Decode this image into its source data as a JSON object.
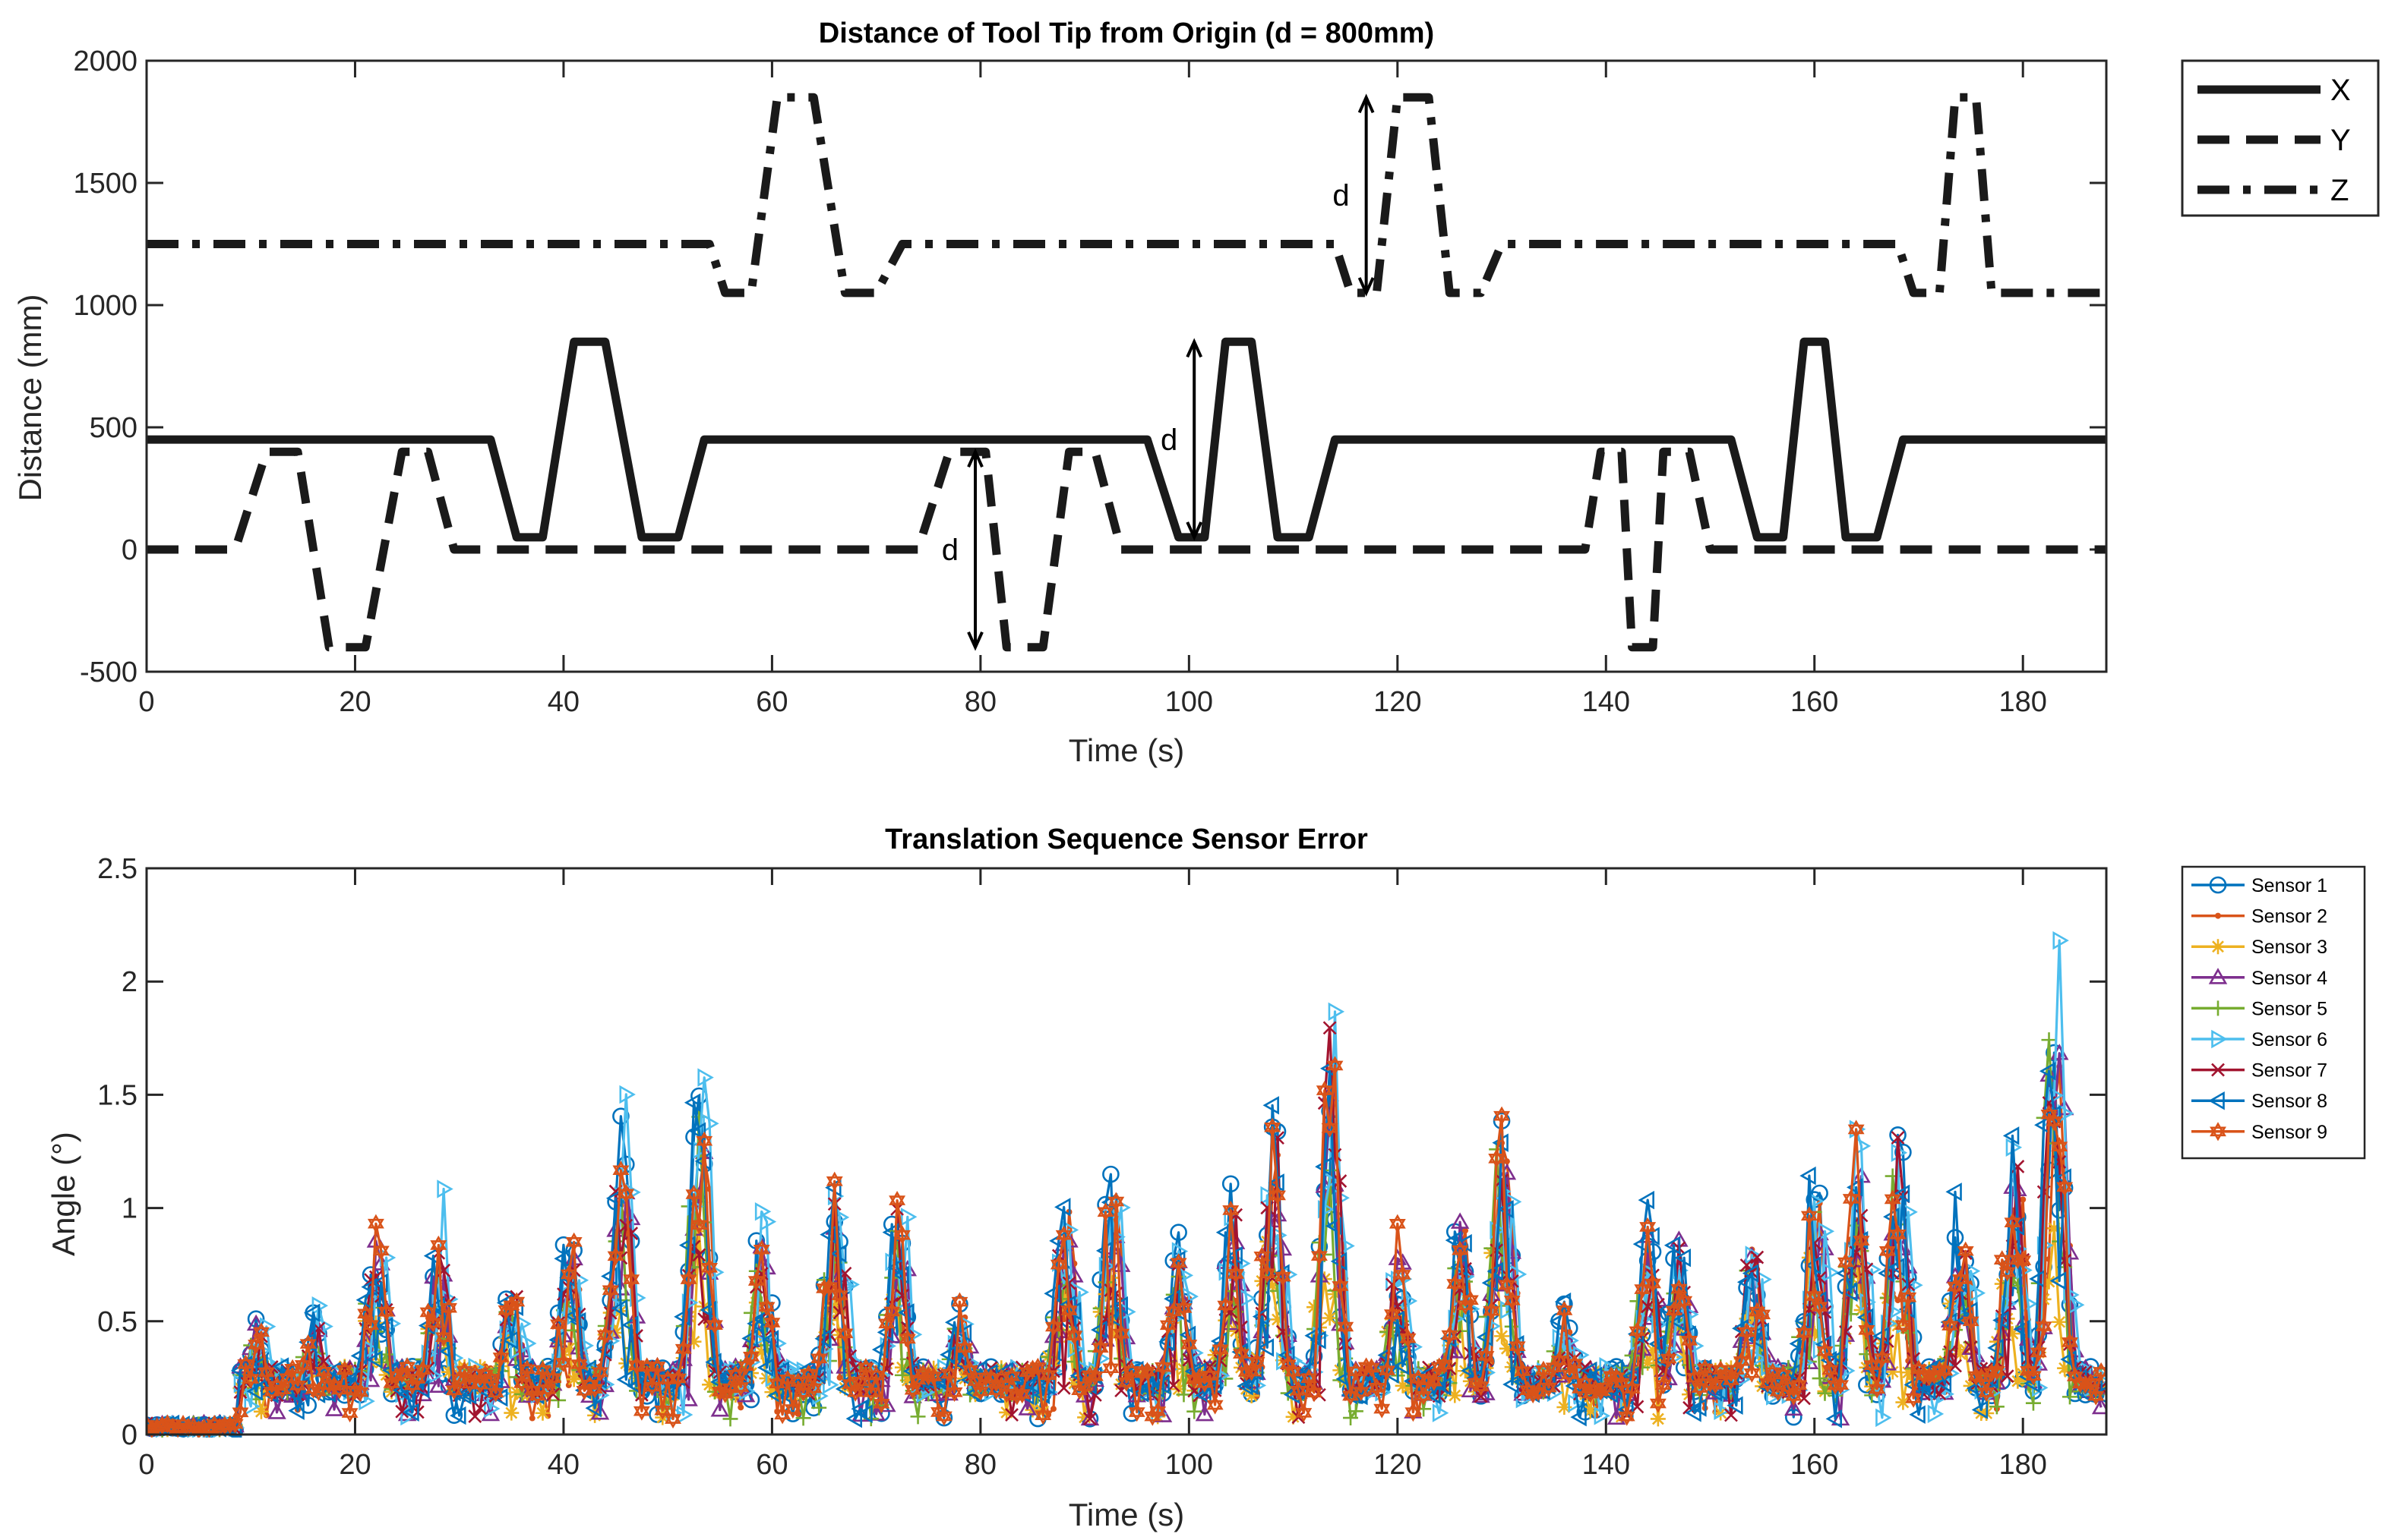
{
  "chart_data": [
    {
      "type": "line",
      "title": "Distance of Tool Tip from Origin (d = 800mm)",
      "xlabel": "Time (s)",
      "ylabel": "Distance (mm)",
      "xlim": [
        0,
        188
      ],
      "ylim": [
        -500,
        2000
      ],
      "xticks": [
        "0",
        "20",
        "40",
        "60",
        "80",
        "100",
        "120",
        "140",
        "160",
        "180"
      ],
      "yticks": [
        "-500",
        "0",
        "500",
        "1000",
        "1500",
        "2000"
      ],
      "legend_position": "outside-right-top",
      "series": [
        {
          "name": "X",
          "style": "solid",
          "points": [
            [
              0,
              450
            ],
            [
              33,
              450
            ],
            [
              35.5,
              50
            ],
            [
              38,
              50
            ],
            [
              41,
              850
            ],
            [
              44,
              850
            ],
            [
              47.5,
              50
            ],
            [
              51,
              50
            ],
            [
              53.5,
              450
            ],
            [
              96,
              450
            ],
            [
              99,
              50
            ],
            [
              101.5,
              50
            ],
            [
              103.5,
              850
            ],
            [
              106,
              850
            ],
            [
              108.5,
              50
            ],
            [
              111.5,
              50
            ],
            [
              114,
              450
            ],
            [
              152,
              450
            ],
            [
              154.5,
              50
            ],
            [
              157,
              50
            ],
            [
              159,
              850
            ],
            [
              161,
              850
            ],
            [
              163,
              50
            ],
            [
              166,
              50
            ],
            [
              168.5,
              450
            ],
            [
              188,
              450
            ]
          ]
        },
        {
          "name": "Y",
          "style": "dashed",
          "points": [
            [
              0,
              0
            ],
            [
              8.5,
              0
            ],
            [
              11.5,
              400
            ],
            [
              14.5,
              400
            ],
            [
              17.5,
              -400
            ],
            [
              21,
              -400
            ],
            [
              24.5,
              400
            ],
            [
              27,
              400
            ],
            [
              29.5,
              0
            ],
            [
              74,
              0
            ],
            [
              77,
              400
            ],
            [
              80.5,
              400
            ],
            [
              82.5,
              -400
            ],
            [
              86,
              -400
            ],
            [
              88.5,
              400
            ],
            [
              91,
              400
            ],
            [
              93.5,
              0
            ],
            [
              138,
              0
            ],
            [
              139.5,
              400
            ],
            [
              141.5,
              400
            ],
            [
              142.5,
              -400
            ],
            [
              144.5,
              -400
            ],
            [
              145.5,
              400
            ],
            [
              148,
              400
            ],
            [
              150,
              0
            ],
            [
              188,
              0
            ]
          ]
        },
        {
          "name": "Z",
          "style": "dash-dot",
          "points": [
            [
              0,
              1250
            ],
            [
              54,
              1250
            ],
            [
              55.5,
              1050
            ],
            [
              58,
              1050
            ],
            [
              60.5,
              1850
            ],
            [
              64,
              1850
            ],
            [
              67,
              1050
            ],
            [
              70,
              1050
            ],
            [
              72.5,
              1250
            ],
            [
              114,
              1250
            ],
            [
              115.5,
              1050
            ],
            [
              118,
              1050
            ],
            [
              120,
              1850
            ],
            [
              123,
              1850
            ],
            [
              125,
              1050
            ],
            [
              128,
              1050
            ],
            [
              130,
              1250
            ],
            [
              168,
              1250
            ],
            [
              169.5,
              1050
            ],
            [
              172,
              1050
            ],
            [
              173.5,
              1850
            ],
            [
              175.5,
              1850
            ],
            [
              177,
              1050
            ],
            [
              188,
              1050
            ]
          ]
        }
      ],
      "annotations": [
        {
          "text": "d",
          "from": [
            117,
            1050
          ],
          "to": [
            117,
            1850
          ]
        },
        {
          "text": "d",
          "from": [
            100.5,
            50
          ],
          "to": [
            100.5,
            850
          ]
        },
        {
          "text": "d",
          "from": [
            79.5,
            -400
          ],
          "to": [
            79.5,
            400
          ]
        }
      ]
    },
    {
      "type": "line",
      "title": "Translation Sequence Sensor Error",
      "xlabel": "Time (s)",
      "ylabel": "Angle (°)",
      "xlim": [
        0,
        188
      ],
      "ylim": [
        0,
        2.5
      ],
      "xticks": [
        "0",
        "20",
        "40",
        "60",
        "80",
        "100",
        "120",
        "140",
        "160",
        "180"
      ],
      "yticks": [
        "0",
        "0.5",
        "1",
        "1.5",
        "2",
        "2.5"
      ],
      "legend_position": "outside-right-top",
      "sample_interval_s": 0.5,
      "t_start_s": 0,
      "peaks": [
        {
          "t": 10.5,
          "h": 0.45
        },
        {
          "t": 16,
          "h": 0.45
        },
        {
          "t": 22,
          "h": 0.85
        },
        {
          "t": 28,
          "h": 0.9
        },
        {
          "t": 35,
          "h": 0.6
        },
        {
          "t": 40.5,
          "h": 0.9
        },
        {
          "t": 45.5,
          "h": 1.35
        },
        {
          "t": 53,
          "h": 1.55
        },
        {
          "t": 59,
          "h": 0.9
        },
        {
          "t": 66,
          "h": 1.05
        },
        {
          "t": 72,
          "h": 1.0
        },
        {
          "t": 78,
          "h": 0.5
        },
        {
          "t": 88,
          "h": 1.0
        },
        {
          "t": 92.5,
          "h": 1.1
        },
        {
          "t": 99,
          "h": 0.8
        },
        {
          "t": 104,
          "h": 1.0
        },
        {
          "t": 108,
          "h": 1.4
        },
        {
          "t": 113.5,
          "h": 1.75
        },
        {
          "t": 120,
          "h": 0.85
        },
        {
          "t": 126,
          "h": 0.95
        },
        {
          "t": 130,
          "h": 1.45
        },
        {
          "t": 136,
          "h": 0.5
        },
        {
          "t": 144,
          "h": 0.95
        },
        {
          "t": 147,
          "h": 0.85
        },
        {
          "t": 154,
          "h": 0.85
        },
        {
          "t": 160,
          "h": 1.15
        },
        {
          "t": 164,
          "h": 1.25
        },
        {
          "t": 168,
          "h": 1.3
        },
        {
          "t": 174,
          "h": 1.05
        },
        {
          "t": 179,
          "h": 1.4
        },
        {
          "t": 183,
          "h": 2.2
        }
      ],
      "series": [
        {
          "name": "Sensor 1",
          "color": "#0072BD",
          "marker": "circle",
          "scale": 1.0,
          "shift": 0.0
        },
        {
          "name": "Sensor 2",
          "color": "#D95319",
          "marker": "point",
          "scale": 0.9,
          "shift": 0.3
        },
        {
          "name": "Sensor 3",
          "color": "#EDB120",
          "marker": "asterisk",
          "scale": 0.6,
          "shift": -0.4
        },
        {
          "name": "Sensor 4",
          "color": "#7E2F8E",
          "marker": "triangle-up",
          "scale": 0.92,
          "shift": 0.2
        },
        {
          "name": "Sensor 5",
          "color": "#77AC30",
          "marker": "plus",
          "scale": 0.85,
          "shift": -0.2
        },
        {
          "name": "Sensor 6",
          "color": "#4DBEEE",
          "marker": "triangle-right",
          "scale": 1.1,
          "shift": 0.4
        },
        {
          "name": "Sensor 7",
          "color": "#A2142F",
          "marker": "x-mark",
          "scale": 0.95,
          "shift": 0.1
        },
        {
          "name": "Sensor 8",
          "color": "#0072BD",
          "marker": "triangle-left",
          "scale": 1.0,
          "shift": -0.1
        },
        {
          "name": "Sensor 9",
          "color": "#D95319",
          "marker": "hexagram",
          "scale": 1.0,
          "shift": 0.0
        }
      ]
    }
  ]
}
